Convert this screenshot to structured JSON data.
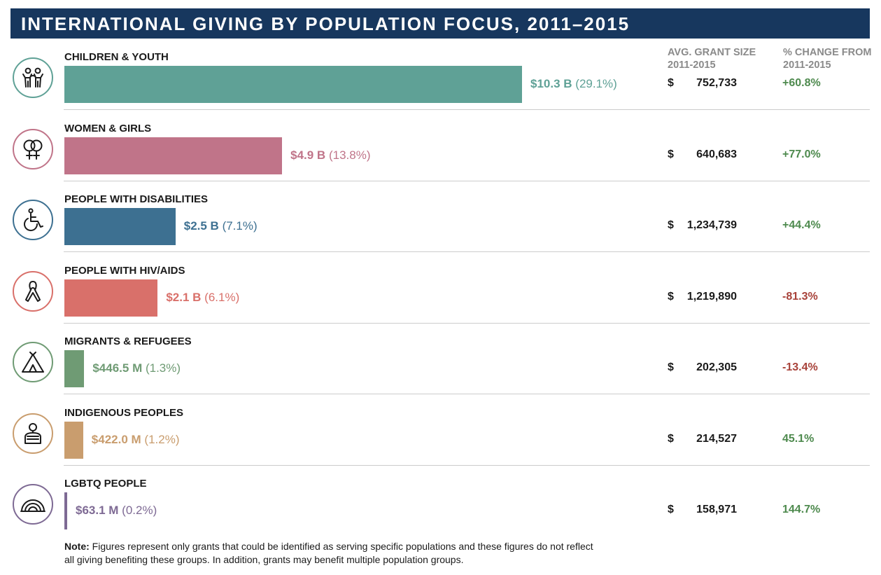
{
  "title": "INTERNATIONAL GIVING BY POPULATION FOCUS, 2011–2015",
  "columns": {
    "avg_grant": [
      "AVG. GRANT SIZE",
      "2011-2015"
    ],
    "pct_change": [
      "% CHANGE FROM",
      "2011-2015"
    ]
  },
  "chart_data": {
    "type": "bar",
    "orientation": "horizontal",
    "title": "INTERNATIONAL GIVING BY POPULATION FOCUS, 2011–2015",
    "max_value_billions": 10.3,
    "categories": [
      {
        "name": "CHILDREN & YOUTH",
        "value_billions": 10.3,
        "amount_label": "$10.3 B",
        "share_label": "(29.1%)",
        "avg_grant": "752,733",
        "change": "+60.8%",
        "color": "#5fa196",
        "change_color": "#4e8a4e",
        "icon": "children-icon"
      },
      {
        "name": "WOMEN & GIRLS",
        "value_billions": 4.9,
        "amount_label": "$4.9 B",
        "share_label": "(13.8%)",
        "avg_grant": "640,683",
        "change": "+77.0%",
        "color": "#c07489",
        "change_color": "#4e8a4e",
        "icon": "female-symbols-icon"
      },
      {
        "name": "PEOPLE WITH DISABILITIES",
        "value_billions": 2.5,
        "amount_label": "$2.5 B",
        "share_label": "(7.1%)",
        "avg_grant": "1,234,739",
        "change": "+44.4%",
        "color": "#3d7091",
        "change_color": "#4e8a4e",
        "icon": "wheelchair-icon"
      },
      {
        "name": "PEOPLE WITH HIV/AIDS",
        "value_billions": 2.1,
        "amount_label": "$2.1 B",
        "share_label": "(6.1%)",
        "avg_grant": "1,219,890",
        "change": "-81.3%",
        "color": "#d9706a",
        "change_color": "#a8423a",
        "icon": "awareness-ribbon-icon"
      },
      {
        "name": "MIGRANTS & REFUGEES",
        "value_billions": 0.4465,
        "amount_label": "$446.5 M",
        "share_label": "(1.3%)",
        "avg_grant": "202,305",
        "change": "-13.4%",
        "color": "#6f9b74",
        "change_color": "#a8423a",
        "icon": "tent-icon"
      },
      {
        "name": "INDIGENOUS PEOPLES",
        "value_billions": 0.422,
        "amount_label": "$422.0 M",
        "share_label": "(1.2%)",
        "avg_grant": "214,527",
        "change": "45.1%",
        "color": "#c99d6e",
        "change_color": "#4e8a4e",
        "icon": "person-icon"
      },
      {
        "name": "LGBTQ PEOPLE",
        "value_billions": 0.0631,
        "amount_label": "$63.1 M",
        "share_label": "(0.2%)",
        "avg_grant": "158,971",
        "change": "144.7%",
        "color": "#7e6a94",
        "change_color": "#4e8a4e",
        "icon": "rainbow-icon"
      }
    ]
  },
  "currency_symbol": "$",
  "note": {
    "label": "Note:",
    "text": " Figures represent only grants that could be identified as serving specific populations and these figures do not reflect all giving benefiting these groups. In addition, grants may benefit multiple population groups."
  }
}
